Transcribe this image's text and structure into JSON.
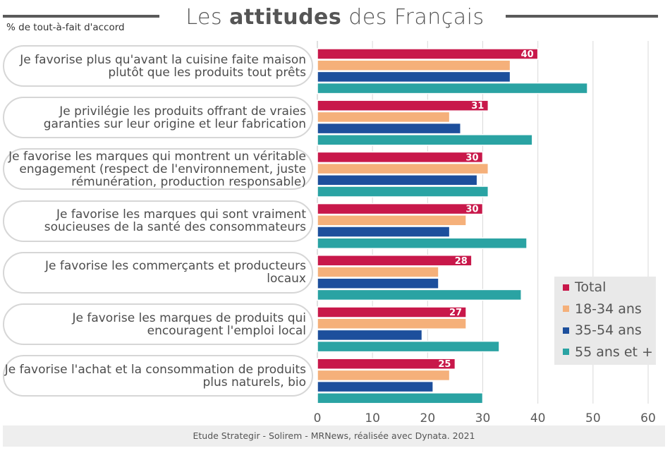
{
  "header": {
    "title_pre": "Les ",
    "title_bold": "attitudes",
    "title_post": " des Français",
    "subtitle": "% de tout-à-fait d'accord"
  },
  "footer": {
    "source": "Etude Strategir - Solirem - MRNews, réalisée avec Dynata. 2021"
  },
  "chart_data": {
    "type": "bar",
    "orientation": "horizontal",
    "categories": [
      "Je favorise plus qu'avant la cuisine faite maison plutôt que les produits tout prêts",
      "Je privilégie les produits offrant de vraies garanties sur leur origine et leur fabrication",
      "Je favorise les marques qui montrent un véritable engagement (respect de l'environnement, juste rémunération, production responsable)",
      "Je favorise les marques qui sont vraiment soucieuses de la santé des consommateurs",
      "Je favorise les commerçants et producteurs locaux",
      "Je favorise les marques de produits qui encouragent l'emploi local",
      "Je favorise l'achat et la consommation de produits plus naturels, bio"
    ],
    "category_lines": [
      [
        "Je favorise plus qu'avant la cuisine faite maison",
        "plutôt que les produits tout prêts"
      ],
      [
        "Je privilégie les produits offrant de vraies",
        "garanties sur leur origine et leur fabrication"
      ],
      [
        "Je favorise les marques qui montrent un véritable",
        "engagement (respect de l'environnement, juste",
        "rémunération, production responsable)"
      ],
      [
        "Je favorise les marques qui sont vraiment",
        "soucieuses de la santé des consommateurs"
      ],
      [
        "Je favorise les commerçants et producteurs",
        "locaux"
      ],
      [
        "Je favorise les marques de produits qui",
        "encouragent l'emploi local"
      ],
      [
        "Je favorise l'achat et la consommation de produits",
        "plus naturels, bio"
      ]
    ],
    "series": [
      {
        "name": "Total",
        "color": "#c8184a",
        "values": [
          40,
          31,
          30,
          30,
          28,
          27,
          25
        ],
        "labels": [
          "40",
          "31",
          "30",
          "30",
          "28",
          "27",
          "25"
        ]
      },
      {
        "name": "18-34 ans",
        "color": "#f5b07a",
        "values": [
          35,
          24,
          31,
          27,
          22,
          27,
          24
        ]
      },
      {
        "name": "35-54 ans",
        "color": "#1d4f9c",
        "values": [
          35,
          26,
          29,
          24,
          22,
          19,
          21
        ]
      },
      {
        "name": "55 ans et +",
        "color": "#2aa3a3",
        "values": [
          49,
          39,
          31,
          38,
          37,
          33,
          30
        ]
      }
    ],
    "xlim": [
      0,
      60
    ],
    "xticks": [
      "0",
      "10",
      "20",
      "30",
      "40",
      "50",
      "60"
    ],
    "grid": true,
    "legend_position": "bottom-right"
  }
}
